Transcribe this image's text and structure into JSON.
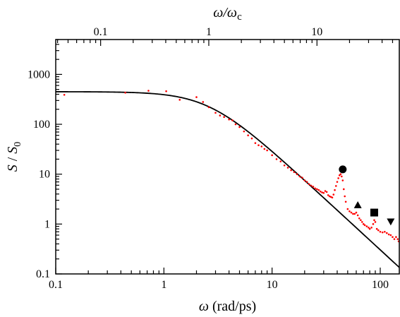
{
  "chart_data": {
    "type": "scatter",
    "xscale": "log",
    "yscale": "log",
    "xlim": [
      0.1,
      150
    ],
    "ylim": [
      0.1,
      5000
    ],
    "x_ticks": [
      "0.1",
      "1",
      "10",
      "100"
    ],
    "y_ticks": [
      "0.1",
      "1",
      "10",
      "100",
      "1000"
    ],
    "top_axis": {
      "label_html": [
        "ω/ω",
        "c"
      ],
      "tick_values": [
        0.1,
        1,
        10
      ],
      "tick_labels": [
        "0.1",
        "1",
        "10"
      ],
      "omega_c": 2.6
    },
    "xlabel": [
      "ω",
      " (rad/ps)"
    ],
    "ylabel": [
      "S",
      " / ",
      "S",
      "0"
    ],
    "grid": false,
    "model_curve": {
      "form": "S0 / (1 + (omega/omega_c)^2)",
      "S0": 450,
      "omega_c": 2.6,
      "color": "#000000"
    },
    "points_color": "#ff0000",
    "points": [
      {
        "x": 0.12,
        "y": 390
      },
      {
        "x": 0.44,
        "y": 430
      },
      {
        "x": 0.72,
        "y": 470
      },
      {
        "x": 1.05,
        "y": 460
      },
      {
        "x": 1.4,
        "y": 310
      },
      {
        "x": 2.0,
        "y": 350
      },
      {
        "x": 2.3,
        "y": 280
      },
      {
        "x": 2.6,
        "y": 220
      },
      {
        "x": 3.0,
        "y": 170
      },
      {
        "x": 3.3,
        "y": 150
      },
      {
        "x": 3.6,
        "y": 140
      },
      {
        "x": 4.0,
        "y": 125
      },
      {
        "x": 4.3,
        "y": 120
      },
      {
        "x": 4.6,
        "y": 100
      },
      {
        "x": 5.0,
        "y": 88
      },
      {
        "x": 5.5,
        "y": 72
      },
      {
        "x": 6.0,
        "y": 60
      },
      {
        "x": 6.5,
        "y": 52
      },
      {
        "x": 7.0,
        "y": 42
      },
      {
        "x": 7.5,
        "y": 38
      },
      {
        "x": 8.0,
        "y": 36
      },
      {
        "x": 8.5,
        "y": 32
      },
      {
        "x": 9.0,
        "y": 30
      },
      {
        "x": 10.0,
        "y": 24
      },
      {
        "x": 11.0,
        "y": 20
      },
      {
        "x": 12.0,
        "y": 18
      },
      {
        "x": 13.0,
        "y": 15
      },
      {
        "x": 14.0,
        "y": 13.5
      },
      {
        "x": 15.0,
        "y": 12
      },
      {
        "x": 16.0,
        "y": 11
      },
      {
        "x": 17.0,
        "y": 10
      },
      {
        "x": 18.0,
        "y": 9
      },
      {
        "x": 19.0,
        "y": 8.5
      },
      {
        "x": 20.0,
        "y": 7.5
      },
      {
        "x": 21.0,
        "y": 7
      },
      {
        "x": 22.0,
        "y": 6.3
      },
      {
        "x": 23.0,
        "y": 5.9
      },
      {
        "x": 24.0,
        "y": 5.6
      },
      {
        "x": 25.0,
        "y": 5.2
      },
      {
        "x": 26.0,
        "y": 5.0
      },
      {
        "x": 27.0,
        "y": 4.8
      },
      {
        "x": 28.0,
        "y": 4.5
      },
      {
        "x": 29.0,
        "y": 4.3
      },
      {
        "x": 30.0,
        "y": 4.2
      },
      {
        "x": 31.0,
        "y": 4.6
      },
      {
        "x": 32.0,
        "y": 4.4
      },
      {
        "x": 33.0,
        "y": 3.8
      },
      {
        "x": 34.0,
        "y": 3.6
      },
      {
        "x": 35.0,
        "y": 3.5
      },
      {
        "x": 36.0,
        "y": 3.4
      },
      {
        "x": 37.0,
        "y": 3.9
      },
      {
        "x": 38.0,
        "y": 4.8
      },
      {
        "x": 39.0,
        "y": 5.8
      },
      {
        "x": 40.0,
        "y": 7.0
      },
      {
        "x": 41.0,
        "y": 8.3
      },
      {
        "x": 42.0,
        "y": 9.5
      },
      {
        "x": 43.0,
        "y": 10.0
      },
      {
        "x": 44.0,
        "y": 9.0
      },
      {
        "x": 45.0,
        "y": 7.5
      },
      {
        "x": 46.0,
        "y": 5.0
      },
      {
        "x": 47.0,
        "y": 3.6
      },
      {
        "x": 48.0,
        "y": 2.8
      },
      {
        "x": 50.0,
        "y": 2.0
      },
      {
        "x": 52.0,
        "y": 1.8
      },
      {
        "x": 54.0,
        "y": 1.7
      },
      {
        "x": 56.0,
        "y": 1.6
      },
      {
        "x": 58.0,
        "y": 1.6
      },
      {
        "x": 60.0,
        "y": 1.7
      },
      {
        "x": 62.0,
        "y": 1.5
      },
      {
        "x": 64.0,
        "y": 1.3
      },
      {
        "x": 66.0,
        "y": 1.2
      },
      {
        "x": 68.0,
        "y": 1.1
      },
      {
        "x": 70.0,
        "y": 1.0
      },
      {
        "x": 72.0,
        "y": 0.95
      },
      {
        "x": 75.0,
        "y": 0.9
      },
      {
        "x": 78.0,
        "y": 0.85
      },
      {
        "x": 80.0,
        "y": 0.8
      },
      {
        "x": 83.0,
        "y": 0.85
      },
      {
        "x": 86.0,
        "y": 1.0
      },
      {
        "x": 88.0,
        "y": 1.2
      },
      {
        "x": 90.0,
        "y": 1.1
      },
      {
        "x": 93.0,
        "y": 0.8
      },
      {
        "x": 96.0,
        "y": 0.75
      },
      {
        "x": 100.0,
        "y": 0.7
      },
      {
        "x": 105.0,
        "y": 0.68
      },
      {
        "x": 110.0,
        "y": 0.7
      },
      {
        "x": 115.0,
        "y": 0.66
      },
      {
        "x": 120.0,
        "y": 0.62
      },
      {
        "x": 125.0,
        "y": 0.6
      },
      {
        "x": 130.0,
        "y": 0.55
      },
      {
        "x": 135.0,
        "y": 0.5
      },
      {
        "x": 140.0,
        "y": 0.55
      },
      {
        "x": 145.0,
        "y": 0.5
      },
      {
        "x": 148.0,
        "y": 0.45
      }
    ],
    "peak_markers": [
      {
        "shape": "circle",
        "x": 45,
        "y": 12.5
      },
      {
        "shape": "triangle-up",
        "x": 62,
        "y": 2.4
      },
      {
        "shape": "square",
        "x": 88,
        "y": 1.7
      },
      {
        "shape": "triangle-down",
        "x": 125,
        "y": 1.12
      }
    ]
  }
}
